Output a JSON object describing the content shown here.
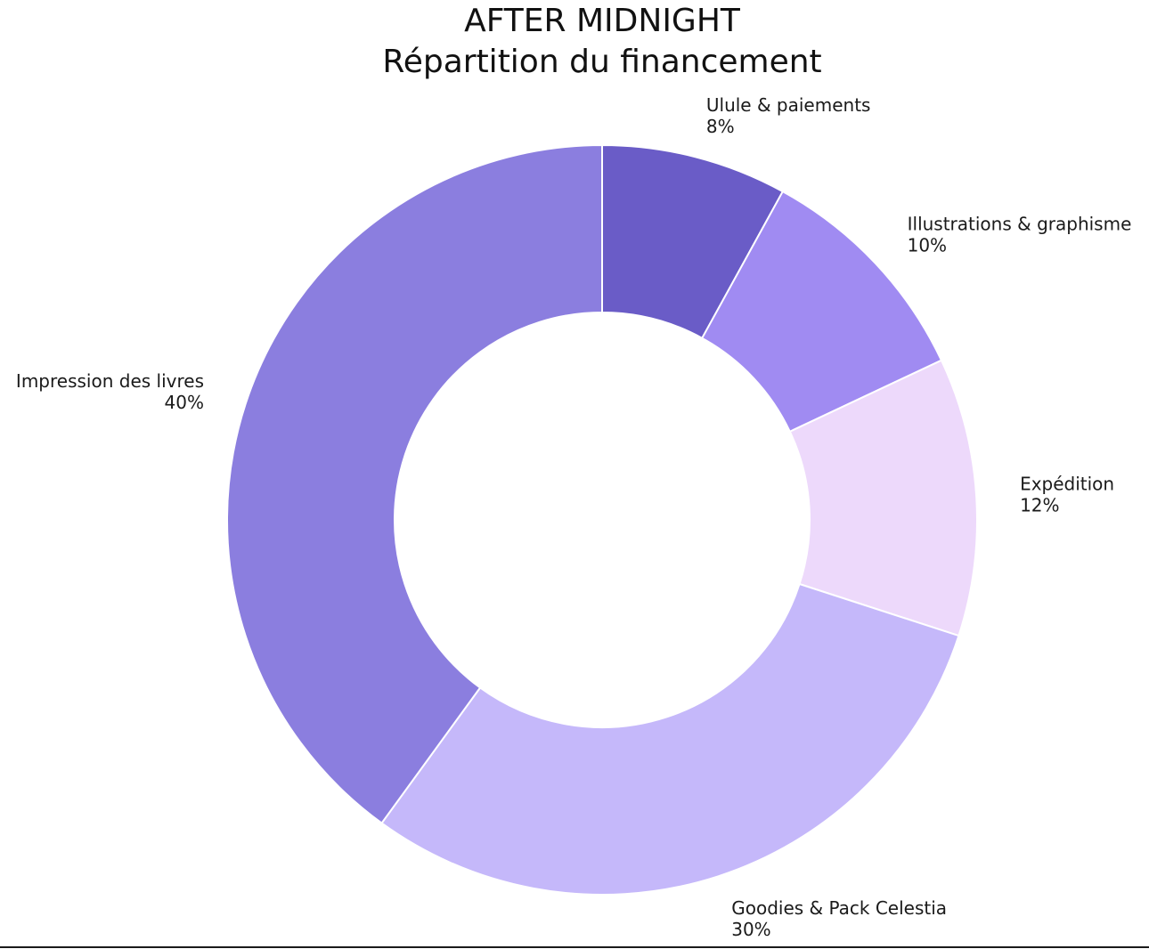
{
  "chart_data": {
    "type": "pie",
    "variant": "donut",
    "title": [
      "AFTER MIDNIGHT",
      "Répartition du financement"
    ],
    "value_format": "percent",
    "slices": [
      {
        "label": "Ulule & paiements",
        "value": 8,
        "percent_label": "8%",
        "color": "#6a5cc7"
      },
      {
        "label": "Illustrations & graphisme",
        "value": 10,
        "percent_label": "10%",
        "color": "#a08bf2"
      },
      {
        "label": "Expédition",
        "value": 12,
        "percent_label": "12%",
        "color": "#edd9fb"
      },
      {
        "label": "Goodies & Pack Celestia",
        "value": 30,
        "percent_label": "30%",
        "color": "#c5b8fa"
      },
      {
        "label": "Impression des livres",
        "value": 40,
        "percent_label": "40%",
        "color": "#8b7edf"
      }
    ],
    "start_angle": "12 o'clock",
    "direction": "clockwise",
    "slice_edge_color": "#ffffff",
    "legend": "none"
  }
}
